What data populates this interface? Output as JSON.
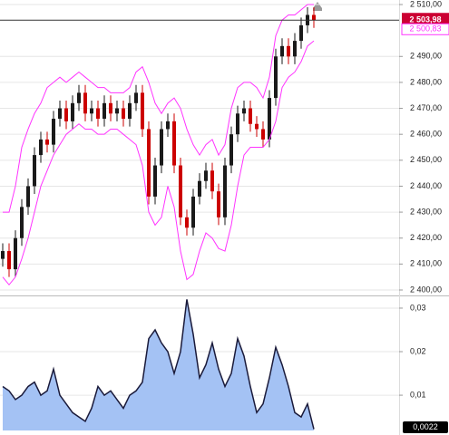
{
  "chart_data": [
    {
      "type": "candlestick",
      "open": [
        2412,
        2415,
        2408,
        2420,
        2432,
        2440,
        2452,
        2458,
        2456,
        2466,
        2470,
        2465,
        2472,
        2476,
        2468,
        2470,
        2466,
        2472,
        2468,
        2470,
        2466,
        2472,
        2476,
        2462,
        2436,
        2448,
        2462,
        2465,
        2448,
        2428,
        2424,
        2436,
        2442,
        2446,
        2438,
        2428,
        2448,
        2460,
        2468,
        2470,
        2464,
        2462,
        2458,
        2474,
        2490,
        2494,
        2490,
        2496,
        2502,
        2506
      ],
      "high": [
        2418,
        2418,
        2423,
        2435,
        2443,
        2455,
        2461,
        2461,
        2469,
        2473,
        2473,
        2475,
        2479,
        2479,
        2473,
        2473,
        2475,
        2475,
        2473,
        2473,
        2475,
        2479,
        2479,
        2465,
        2451,
        2465,
        2468,
        2468,
        2451,
        2431,
        2439,
        2445,
        2449,
        2449,
        2441,
        2451,
        2463,
        2471,
        2473,
        2473,
        2467,
        2465,
        2477,
        2493,
        2497,
        2497,
        2499,
        2505,
        2509,
        2509
      ],
      "low": [
        2409,
        2405,
        2405,
        2417,
        2429,
        2437,
        2449,
        2453,
        2453,
        2463,
        2462,
        2462,
        2469,
        2465,
        2465,
        2463,
        2463,
        2465,
        2465,
        2463,
        2463,
        2469,
        2459,
        2433,
        2433,
        2445,
        2459,
        2445,
        2425,
        2421,
        2421,
        2433,
        2439,
        2435,
        2425,
        2425,
        2445,
        2457,
        2465,
        2461,
        2459,
        2455,
        2455,
        2471,
        2487,
        2487,
        2487,
        2493,
        2499,
        2501
      ],
      "close": [
        2415,
        2408,
        2420,
        2432,
        2440,
        2452,
        2458,
        2456,
        2466,
        2470,
        2465,
        2472,
        2476,
        2468,
        2470,
        2466,
        2472,
        2468,
        2470,
        2466,
        2472,
        2476,
        2462,
        2436,
        2448,
        2462,
        2465,
        2448,
        2428,
        2424,
        2436,
        2442,
        2446,
        2438,
        2428,
        2448,
        2460,
        2468,
        2470,
        2464,
        2462,
        2458,
        2474,
        2490,
        2494,
        2490,
        2496,
        2502,
        2506,
        2504
      ],
      "up_color": "#1a1a1a",
      "down_color": "#cc0000",
      "bands": [
        {
          "color": "#ff33ff",
          "values": [
            2430,
            2430,
            2440,
            2455,
            2462,
            2468,
            2472,
            2478,
            2480,
            2482,
            2480,
            2482,
            2484,
            2482,
            2480,
            2478,
            2478,
            2476,
            2476,
            2476,
            2478,
            2484,
            2486,
            2480,
            2472,
            2468,
            2472,
            2474,
            2470,
            2462,
            2456,
            2452,
            2456,
            2458,
            2452,
            2456,
            2470,
            2478,
            2480,
            2480,
            2478,
            2474,
            2482,
            2498,
            2504,
            2506,
            2506,
            2508,
            2510,
            2510
          ]
        },
        {
          "color": "#ff33ff",
          "values": [
            2405,
            2402,
            2405,
            2412,
            2420,
            2430,
            2440,
            2446,
            2452,
            2456,
            2460,
            2462,
            2464,
            2462,
            2462,
            2460,
            2460,
            2462,
            2462,
            2460,
            2458,
            2456,
            2448,
            2430,
            2425,
            2428,
            2440,
            2432,
            2415,
            2404,
            2406,
            2415,
            2422,
            2420,
            2416,
            2415,
            2425,
            2440,
            2452,
            2455,
            2455,
            2455,
            2458,
            2465,
            2478,
            2482,
            2484,
            2488,
            2494,
            2496
          ]
        }
      ],
      "ylim": [
        2397.9,
        2511.75
      ],
      "yticks": [
        {
          "value": 2400,
          "label": "2 400,00"
        },
        {
          "value": 2410,
          "label": "2 410,00"
        },
        {
          "value": 2420,
          "label": "2 420,00"
        },
        {
          "value": 2430,
          "label": "2 430,00"
        },
        {
          "value": 2440,
          "label": "2 440,00"
        },
        {
          "value": 2450,
          "label": "2 450,00"
        },
        {
          "value": 2460,
          "label": "2 460,00"
        },
        {
          "value": 2470,
          "label": "2 470,00"
        },
        {
          "value": 2480,
          "label": "2 480,00"
        },
        {
          "value": 2490,
          "label": "2 490,00"
        },
        {
          "value": 2510,
          "label": "2 510,00"
        }
      ],
      "grid": true,
      "last_price": {
        "value": 2503.98,
        "label": "2 503,98",
        "color": "#cc0033"
      },
      "band_tag": {
        "value": 2500.83,
        "label": "2 500,83",
        "color": "#ff33ff"
      }
    },
    {
      "type": "area",
      "values": [
        0.012,
        0.011,
        0.009,
        0.01,
        0.012,
        0.013,
        0.01,
        0.011,
        0.016,
        0.01,
        0.008,
        0.006,
        0.005,
        0.004,
        0.007,
        0.012,
        0.01,
        0.011,
        0.009,
        0.007,
        0.01,
        0.011,
        0.013,
        0.023,
        0.025,
        0.022,
        0.02,
        0.015,
        0.02,
        0.032,
        0.024,
        0.014,
        0.017,
        0.022,
        0.016,
        0.012,
        0.015,
        0.023,
        0.019,
        0.012,
        0.006,
        0.008,
        0.014,
        0.021,
        0.017,
        0.012,
        0.006,
        0.005,
        0.008,
        0.0022
      ],
      "color": "#a4c2f4",
      "line_color": "#1a1a3a",
      "ylim": [
        0.0019,
        0.0327
      ],
      "yticks": [
        {
          "value": 0.01,
          "label": "0,01"
        },
        {
          "value": 0.02,
          "label": "0,02"
        },
        {
          "value": 0.03,
          "label": "0,03"
        }
      ],
      "grid": true,
      "last_value": {
        "value": 0.0022,
        "label": "0,0022",
        "color": "#000000"
      }
    }
  ]
}
